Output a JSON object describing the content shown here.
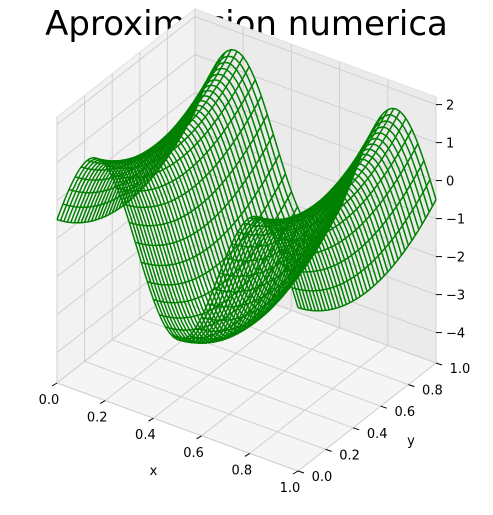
{
  "chart_data": {
    "type": "wireframe-3d",
    "title": "Aproximacion numerica",
    "xlabel": "x",
    "ylabel": "y",
    "zlabel": "",
    "xlim": [
      0,
      1
    ],
    "ylim": [
      0,
      1
    ],
    "zlim": [
      -4.8,
      2.2
    ],
    "x_ticks": [
      "0.0",
      "0.2",
      "0.4",
      "0.6",
      "0.8",
      "1.0"
    ],
    "y_ticks": [
      "0.0",
      "0.2",
      "0.4",
      "0.6",
      "0.8",
      "1.0"
    ],
    "z_ticks": [
      "2",
      "1",
      "0",
      "−1",
      "−2",
      "−3",
      "−4"
    ],
    "x_values": [
      0.0,
      0.2,
      0.4,
      0.6,
      0.8,
      1.0
    ],
    "y_values": [
      0.0,
      0.2,
      0.4,
      0.6,
      0.8,
      1.0
    ],
    "z_values": [
      2,
      1,
      0,
      -1,
      -2,
      -3,
      -4
    ],
    "surface_formula": "z = 2*sin(3*pi*x) + 4*y^2 - 4*y - 0.5 (approx. reading)",
    "series_color": "#008000",
    "grid": true,
    "pane_color": "#f2f2f2",
    "grid_color": "#d0d0d0"
  }
}
